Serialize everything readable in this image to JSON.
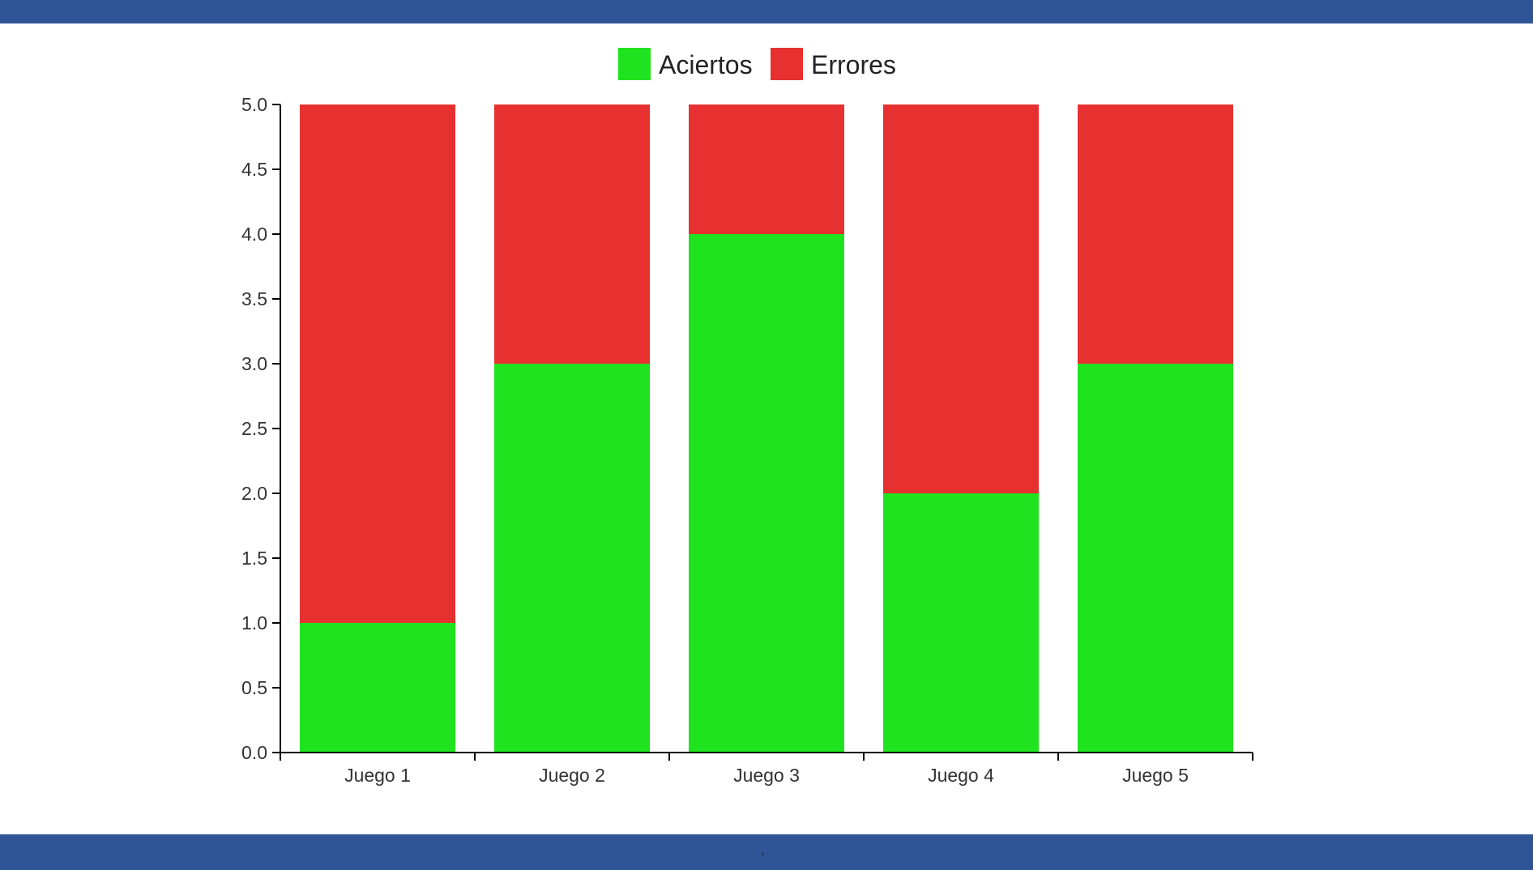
{
  "chart_data": {
    "type": "bar",
    "stacked": true,
    "categories": [
      "Juego 1",
      "Juego 2",
      "Juego 3",
      "Juego 4",
      "Juego 5"
    ],
    "series": [
      {
        "name": "Aciertos",
        "color": "#1fe31f",
        "values": [
          1,
          3,
          4,
          2,
          3
        ]
      },
      {
        "name": "Errores",
        "color": "#e73131",
        "values": [
          4,
          2,
          1,
          3,
          2
        ]
      }
    ],
    "yticks": [
      "0.0",
      "0.5",
      "1.0",
      "1.5",
      "2.0",
      "2.5",
      "3.0",
      "3.5",
      "4.0",
      "4.5",
      "5.0"
    ],
    "ylim": [
      0,
      5
    ],
    "legend_position": "top-center",
    "grid": false
  },
  "colors": {
    "header_bar": "#2f5597",
    "footer_bar": "#2f5597"
  },
  "footer": {
    "mark": "′"
  }
}
